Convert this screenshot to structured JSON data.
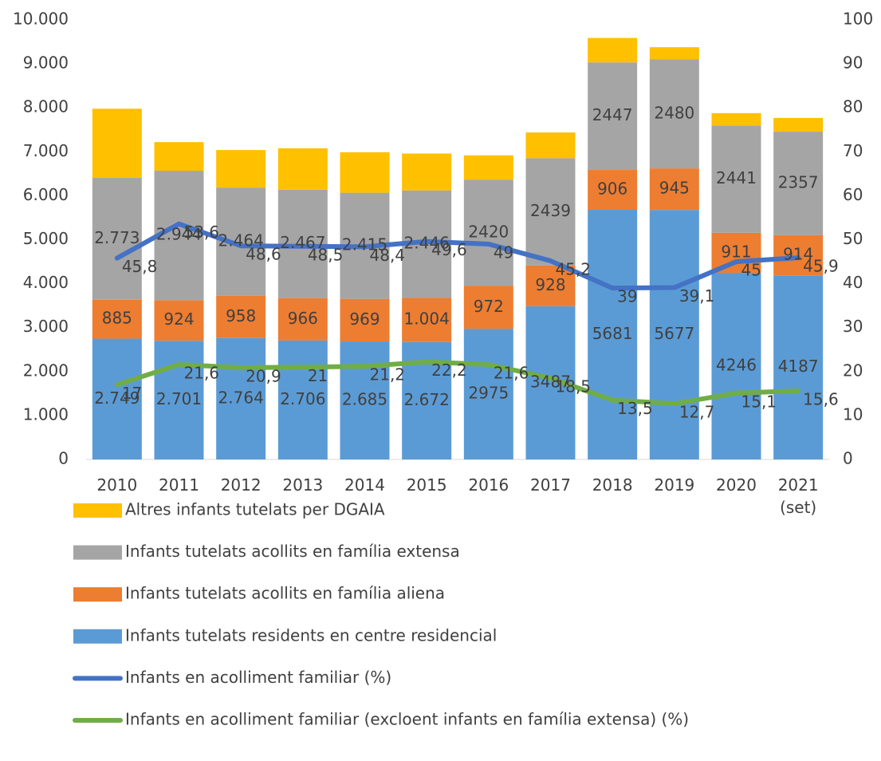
{
  "chart_data": {
    "type": "bar",
    "stacked": true,
    "categories": [
      "2010",
      "2011",
      "2012",
      "2013",
      "2014",
      "2015",
      "2016",
      "2017",
      "2018",
      "2019",
      "2020",
      "2021 (set)"
    ],
    "ylim": [
      0,
      10000
    ],
    "yticks": [
      {
        "value": 0,
        "label": "0"
      },
      {
        "value": 1000,
        "label": "1.000"
      },
      {
        "value": 2000,
        "label": "2.000"
      },
      {
        "value": 3000,
        "label": "3.000"
      },
      {
        "value": 4000,
        "label": "4.000"
      },
      {
        "value": 5000,
        "label": "5.000"
      },
      {
        "value": 6000,
        "label": "6.000"
      },
      {
        "value": 7000,
        "label": "7.000"
      },
      {
        "value": 8000,
        "label": "8.000"
      },
      {
        "value": 9000,
        "label": "9.000"
      },
      {
        "value": 10000,
        "label": "10.000"
      }
    ],
    "y2lim": [
      0,
      100
    ],
    "y2ticks": [
      0,
      10,
      20,
      30,
      40,
      50,
      60,
      70,
      80,
      90,
      100
    ],
    "grid": false,
    "legend": "bottom",
    "series": [
      {
        "name": "Altres infants tutelats per DGAIA",
        "type": "bar",
        "color": "#ffc000",
        "values": [
          1573,
          651,
          854,
          941,
          921,
          838,
          553,
          586,
          556,
          278,
          282,
          312
        ]
      },
      {
        "name": "Infants tutelats acollits en família extensa",
        "type": "bar",
        "color": "#a5a5a5",
        "values": [
          2773,
          2944,
          2464,
          2467,
          2415,
          2446,
          2420,
          2439,
          2447,
          2480,
          2441,
          2357
        ],
        "value_labels": [
          "2.773",
          "2.944",
          "2.464",
          "2.467",
          "2.415",
          "2.446",
          "2420",
          "2439",
          "2447",
          "2480",
          "2441",
          "2357"
        ]
      },
      {
        "name": "Infants tutelats acollits en família aliena",
        "type": "bar",
        "color": "#ed7d31",
        "values": [
          885,
          924,
          958,
          966,
          969,
          1004,
          972,
          928,
          906,
          945,
          911,
          914
        ],
        "value_labels": [
          "885",
          "924",
          "958",
          "966",
          "969",
          "1.004",
          "972",
          "928",
          "906",
          "945",
          "911",
          "914"
        ]
      },
      {
        "name": "Infants tutelats residents en centre residencial",
        "type": "bar",
        "color": "#5b9bd5",
        "values": [
          2749,
          2701,
          2764,
          2706,
          2685,
          2672,
          2975,
          3487,
          5681,
          5677,
          4246,
          4187
        ],
        "value_labels": [
          "2.749",
          "2.701",
          "2.764",
          "2.706",
          "2.685",
          "2.672",
          "2975",
          "3487",
          "5681",
          "5677",
          "4246",
          "4187"
        ]
      },
      {
        "name": "Infants en acolliment familiar (%)",
        "type": "line",
        "axis": "y2",
        "color": "#4472c4",
        "values": [
          45.8,
          53.6,
          48.6,
          48.5,
          48.4,
          49.6,
          49,
          45.2,
          39,
          39.1,
          45,
          45.9
        ],
        "value_labels": [
          "45,8",
          "53,6",
          "48,6",
          "48,5",
          "48,4",
          "49,6",
          "49",
          "45,2",
          "39",
          "39,1",
          "45",
          "45,9"
        ]
      },
      {
        "name": "Infants en acolliment familiar (excloent infants en família extensa) (%)",
        "type": "line",
        "axis": "y2",
        "color": "#70ad47",
        "values": [
          17,
          21.6,
          20.9,
          21,
          21.2,
          22.2,
          21.6,
          18.5,
          13.5,
          12.7,
          15.1,
          15.6
        ],
        "value_labels": [
          "17",
          "21,6",
          "20,9",
          "21",
          "21,2",
          "22,2",
          "21,6",
          "18,5",
          "13,5",
          "12,7",
          "15,1",
          "15,6"
        ]
      }
    ]
  }
}
